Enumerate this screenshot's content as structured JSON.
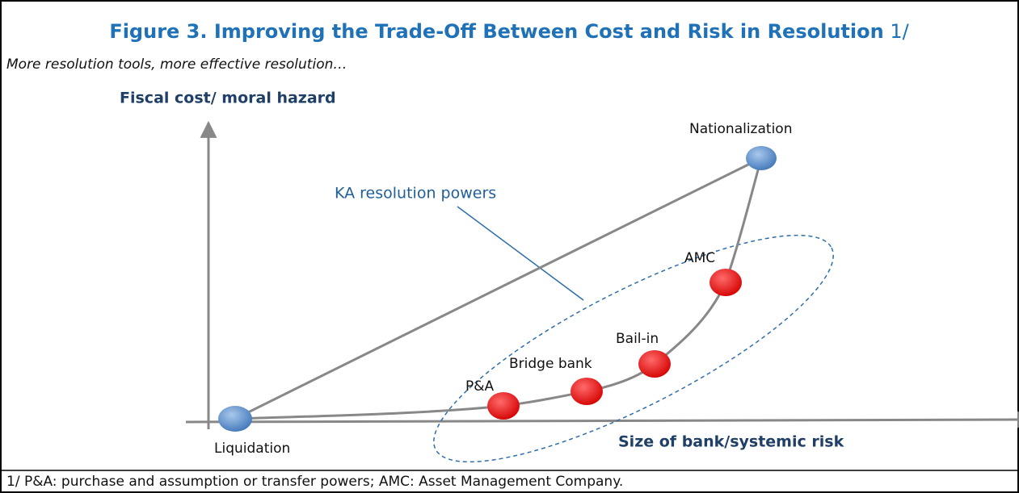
{
  "figure": {
    "title": "Figure 3. Improving the Trade-Off Between Cost and Risk in Resolution",
    "title_note": "1/",
    "subtitle": "More resolution tools, more effective resolution…",
    "y_axis_label": "Fiscal cost/ moral hazard",
    "x_axis_label": "Size of bank/systemic risk",
    "annotation": "KA resolution powers",
    "nodes": [
      {
        "label": "Liquidation"
      },
      {
        "label": "P&A"
      },
      {
        "label": "Bridge bank"
      },
      {
        "label": "Bail-in"
      },
      {
        "label": "AMC"
      },
      {
        "label": "Nationalization"
      }
    ],
    "footnote": "1/ P&A: purchase and assumption or transfer powers; AMC: Asset Management Company."
  }
}
